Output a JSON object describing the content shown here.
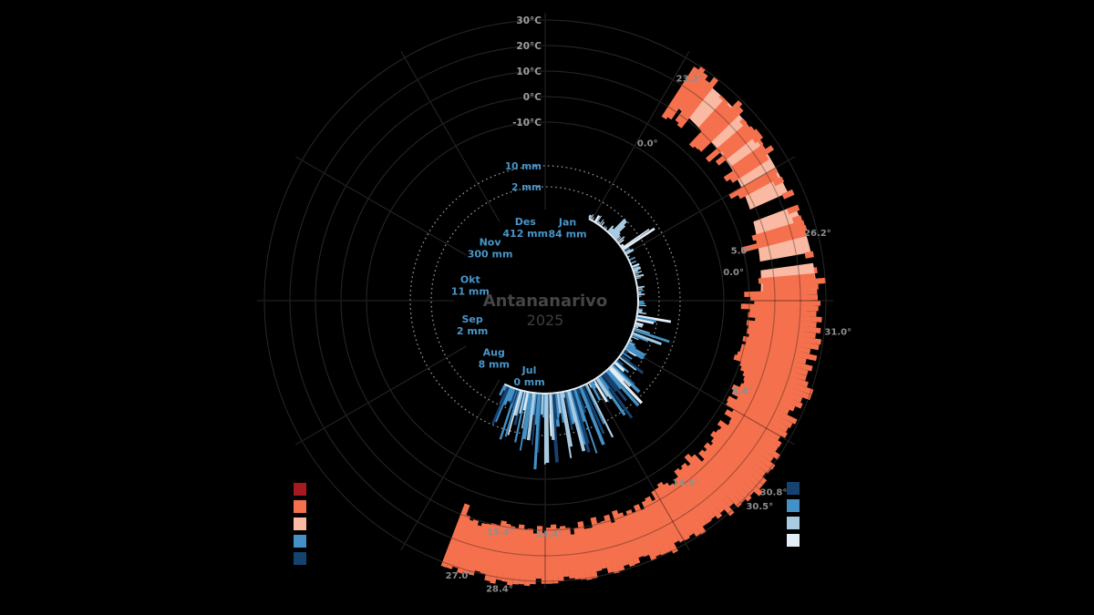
{
  "chart_data": {
    "type": "radial-climate",
    "title": "Antananarivo",
    "year": "2025",
    "temp_axis_labels": [
      "30°C",
      "20°C",
      "10°C",
      "0°C",
      "-10°C"
    ],
    "temp_axis_values_c": [
      30,
      20,
      10,
      0,
      -10
    ],
    "precip_axis_labels": [
      "10 mm",
      "2 mm"
    ],
    "precip_axis_values_mm": [
      10,
      2
    ],
    "months": [
      {
        "name": "Jan",
        "total_precip": "84 mm",
        "angle_deg": 17
      },
      {
        "name": "Jul",
        "total_precip": "0 mm",
        "angle_deg": 192
      },
      {
        "name": "Aug",
        "total_precip": "8 mm",
        "angle_deg": 222
      },
      {
        "name": "Sep",
        "total_precip": "2 mm",
        "angle_deg": 252
      },
      {
        "name": "Okt",
        "total_precip": "11 mm",
        "angle_deg": 282
      },
      {
        "name": "Nov",
        "total_precip": "300 mm",
        "angle_deg": 314
      },
      {
        "name": "Des",
        "total_precip": "412 mm",
        "angle_deg": 345
      }
    ],
    "extreme_temp_labels": [
      {
        "label": "23.2°",
        "angle_deg": 33,
        "radius_px": 291
      },
      {
        "label": "0.0°",
        "angle_deg": 33,
        "radius_px": 206
      },
      {
        "label": "26.2°",
        "angle_deg": 76,
        "radius_px": 308
      },
      {
        "label": "5.0°",
        "angle_deg": 75.6,
        "radius_px": 222
      },
      {
        "label": "0.0°",
        "angle_deg": 81.4,
        "radius_px": 209
      },
      {
        "label": "31.0°",
        "angle_deg": 96,
        "radius_px": 323
      },
      {
        "label": "8.6°",
        "angle_deg": 114.6,
        "radius_px": 238
      },
      {
        "label": "30.8°",
        "angle_deg": 130,
        "radius_px": 327
      },
      {
        "label": "30.5°",
        "angle_deg": 133.8,
        "radius_px": 326
      },
      {
        "label": "13.5°",
        "angle_deg": 142.3,
        "radius_px": 252
      },
      {
        "label": "14.4°",
        "angle_deg": 179,
        "radius_px": 256
      },
      {
        "label": "28.4°",
        "angle_deg": 189,
        "radius_px": 320
      },
      {
        "label": "15.4°",
        "angle_deg": 191,
        "radius_px": 258
      },
      {
        "label": "27.0°",
        "angle_deg": 197.4,
        "radius_px": 316
      }
    ],
    "temperature_band": {
      "start_angle_deg": 33,
      "end_angle_deg": 201,
      "daily_color": "#f5714e",
      "normal_color": "#f9b9a2",
      "gaps_deg": [
        [
          67.2,
          69.2
        ],
        [
          80.2,
          82.0
        ]
      ],
      "envelope_min_max_c": [
        [
          33,
          11.5,
          28.0
        ],
        [
          40,
          10.0,
          27.0
        ],
        [
          48,
          5.7,
          26.4
        ],
        [
          56,
          7.9,
          27.1
        ],
        [
          64,
          5.0,
          25.7
        ],
        [
          70,
          5.7,
          27.9
        ],
        [
          76,
          2.1,
          30.0
        ],
        [
          82,
          3.6,
          29.3
        ],
        [
          88,
          -0.7,
          27.1
        ],
        [
          96,
          1.4,
          28.6
        ],
        [
          104,
          -0.7,
          26.4
        ],
        [
          112,
          2.1,
          26.1
        ],
        [
          120,
          3.9,
          27.1
        ],
        [
          128,
          5.0,
          30.7
        ],
        [
          136,
          6.4,
          30.0
        ],
        [
          144,
          5.7,
          28.9
        ],
        [
          152,
          7.9,
          29.3
        ],
        [
          160,
          8.6,
          28.9
        ],
        [
          168,
          9.3,
          29.3
        ],
        [
          176,
          10.0,
          30.0
        ],
        [
          184,
          9.3,
          30.7
        ],
        [
          192,
          10.0,
          31.4
        ],
        [
          201,
          10.7,
          30.0
        ]
      ],
      "normal_band_c": [
        [
          33,
          12.0,
          26.5
        ],
        [
          45,
          10.0,
          25.5
        ],
        [
          55,
          9.5,
          24.5
        ],
        [
          65,
          8.0,
          24.0
        ],
        [
          76,
          6.0,
          25.5
        ],
        [
          88,
          4.5,
          26.5
        ]
      ]
    },
    "precipitation": {
      "light_ticks_range_deg": [
        28,
        118
      ],
      "heavy_bars_range_deg": [
        118,
        206
      ],
      "heavy_bar_peak_mm": 40,
      "colors": {
        "navy": "#164270",
        "medium": "#4391c6",
        "light": "#a9cbe1",
        "pale": "#e4eef7"
      },
      "arc_color": "#e9f1f8"
    },
    "grid": {
      "ring_color": "#383838",
      "spoke_color": "#3f3f3f",
      "dotted_ring_color": "#949494",
      "axis_text_color": "#9e9e9e",
      "precip_text_color": "#4795ca",
      "extreme_text_color": "#8d8d8d",
      "title_color": "#454545",
      "year_color": "#3e3e3e",
      "month_text_color": "#4795ca"
    }
  },
  "legend_left": {
    "colors": [
      "#a6191f",
      "#f5714e",
      "#f9b9a2",
      "#4391c6",
      "#164270"
    ]
  },
  "legend_right": {
    "colors": [
      "#164270",
      "#4391c6",
      "#a9cbe1",
      "#e4eef7"
    ]
  }
}
